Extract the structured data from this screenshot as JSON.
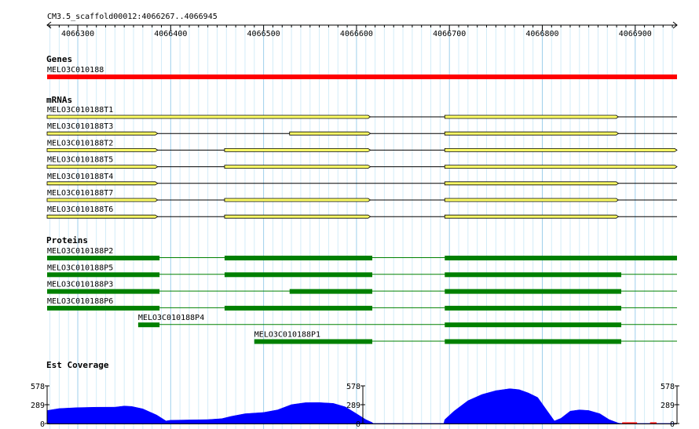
{
  "region": "CM3.5_scaffold00012:4066267..4066945",
  "ruler": {
    "start": 4066267,
    "end": 4066945,
    "ticks": [
      4066300,
      4066400,
      4066500,
      4066600,
      4066700,
      4066800,
      4066900
    ]
  },
  "tracks": {
    "genes": {
      "title": "Genes",
      "items": [
        {
          "name": "MELO3C010188",
          "start": 4066267,
          "end": 4066945,
          "color": "#ff0000"
        }
      ]
    },
    "mrnas": {
      "title": "mRNAs",
      "exon_color": "#ffff66",
      "items": [
        {
          "name": "MELO3C010188T1",
          "start": 4066267,
          "end": 4066945,
          "exons": [
            [
              4066267,
              4066615
            ],
            [
              4066695,
              4066882
            ]
          ]
        },
        {
          "name": "MELO3C010188T3",
          "start": 4066267,
          "end": 4066945,
          "exons": [
            [
              4066267,
              4066386
            ],
            [
              4066528,
              4066615
            ],
            [
              4066695,
              4066882
            ]
          ]
        },
        {
          "name": "MELO3C010188T2",
          "start": 4066267,
          "end": 4066945,
          "exons": [
            [
              4066267,
              4066386
            ],
            [
              4066458,
              4066615
            ],
            [
              4066695,
              4066945
            ]
          ]
        },
        {
          "name": "MELO3C010188T5",
          "start": 4066267,
          "end": 4066945,
          "exons": [
            [
              4066267,
              4066386
            ],
            [
              4066458,
              4066615
            ],
            [
              4066695,
              4066945
            ]
          ]
        },
        {
          "name": "MELO3C010188T4",
          "start": 4066267,
          "end": 4066945,
          "exons": [
            [
              4066267,
              4066386
            ],
            [
              4066695,
              4066882
            ]
          ]
        },
        {
          "name": "MELO3C010188T7",
          "start": 4066267,
          "end": 4066945,
          "exons": [
            [
              4066267,
              4066386
            ],
            [
              4066458,
              4066615
            ],
            [
              4066695,
              4066882
            ]
          ]
        },
        {
          "name": "MELO3C010188T6",
          "start": 4066267,
          "end": 4066945,
          "exons": [
            [
              4066267,
              4066386
            ],
            [
              4066458,
              4066615
            ],
            [
              4066695,
              4066882
            ]
          ]
        }
      ]
    },
    "proteins": {
      "title": "Proteins",
      "color": "#008000",
      "items": [
        {
          "name": "MELO3C010188P2",
          "start": 4066267,
          "end": 4066945,
          "exons": [
            [
              4066267,
              4066388
            ],
            [
              4066458,
              4066617
            ],
            [
              4066695,
              4066945
            ]
          ]
        },
        {
          "name": "MELO3C010188P5",
          "start": 4066267,
          "end": 4066945,
          "exons": [
            [
              4066267,
              4066388
            ],
            [
              4066458,
              4066617
            ],
            [
              4066695,
              4066885
            ]
          ]
        },
        {
          "name": "MELO3C010188P3",
          "start": 4066267,
          "end": 4066945,
          "exons": [
            [
              4066267,
              4066388
            ],
            [
              4066528,
              4066617
            ],
            [
              4066695,
              4066885
            ]
          ]
        },
        {
          "name": "MELO3C010188P6",
          "start": 4066267,
          "end": 4066945,
          "exons": [
            [
              4066267,
              4066388
            ],
            [
              4066458,
              4066617
            ],
            [
              4066695,
              4066885
            ]
          ]
        },
        {
          "name": "MELO3C010188P4",
          "start": 4066365,
          "end": 4066945,
          "exons": [
            [
              4066365,
              4066388
            ],
            [
              4066695,
              4066885
            ]
          ]
        },
        {
          "name": "MELO3C010188P1",
          "start": 4066490,
          "end": 4066945,
          "exons": [
            [
              4066490,
              4066617
            ],
            [
              4066695,
              4066885
            ]
          ]
        }
      ]
    },
    "coverage": {
      "title": "Est Coverage",
      "ymax": 578,
      "y_ticks": [
        "578",
        "289",
        "0"
      ],
      "color": "#0000ff",
      "low_color": "#ff0000",
      "profile": [
        [
          4066267,
          200
        ],
        [
          4066280,
          230
        ],
        [
          4066300,
          245
        ],
        [
          4066320,
          250
        ],
        [
          4066340,
          252
        ],
        [
          4066350,
          268
        ],
        [
          4066358,
          262
        ],
        [
          4066370,
          225
        ],
        [
          4066385,
          130
        ],
        [
          4066395,
          40
        ],
        [
          4066400,
          50
        ],
        [
          4066420,
          55
        ],
        [
          4066440,
          60
        ],
        [
          4066455,
          75
        ],
        [
          4066465,
          110
        ],
        [
          4066480,
          150
        ],
        [
          4066500,
          170
        ],
        [
          4066515,
          210
        ],
        [
          4066530,
          290
        ],
        [
          4066545,
          320
        ],
        [
          4066560,
          322
        ],
        [
          4066575,
          310
        ],
        [
          4066588,
          255
        ],
        [
          4066600,
          150
        ],
        [
          4066610,
          60
        ],
        [
          4066617,
          15
        ],
        [
          4066618,
          0
        ],
        [
          4066694,
          0
        ],
        [
          4066695,
          60
        ],
        [
          4066705,
          190
        ],
        [
          4066720,
          350
        ],
        [
          4066735,
          445
        ],
        [
          4066750,
          505
        ],
        [
          4066765,
          535
        ],
        [
          4066775,
          520
        ],
        [
          4066785,
          470
        ],
        [
          4066795,
          400
        ],
        [
          4066805,
          200
        ],
        [
          4066813,
          40
        ],
        [
          4066820,
          80
        ],
        [
          4066830,
          190
        ],
        [
          4066840,
          210
        ],
        [
          4066850,
          200
        ],
        [
          4066862,
          150
        ],
        [
          4066872,
          60
        ],
        [
          4066882,
          6
        ],
        [
          4066885,
          0
        ],
        [
          4066945,
          0
        ]
      ],
      "low_spans": [
        [
          4066886,
          4066902
        ],
        [
          4066916,
          4066923
        ]
      ]
    }
  }
}
